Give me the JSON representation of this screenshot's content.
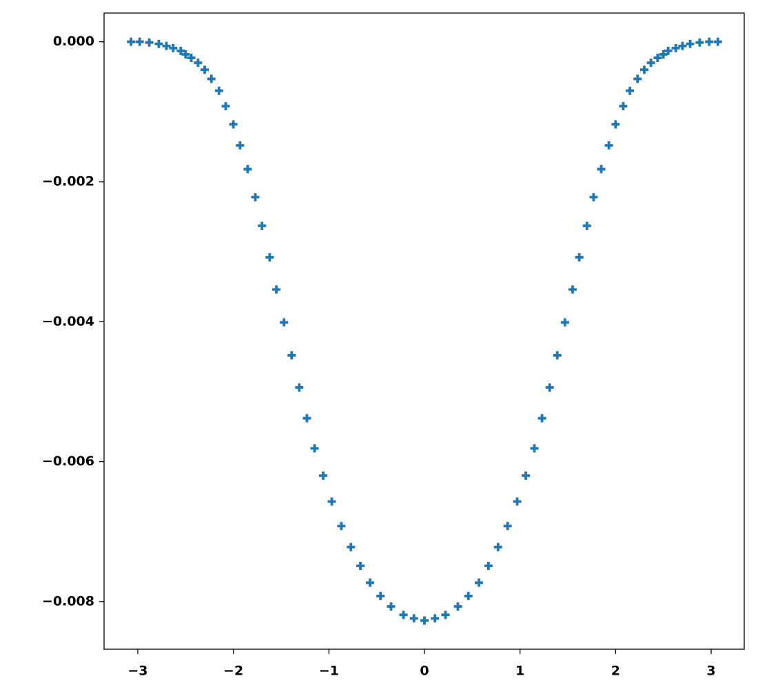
{
  "chart_data": {
    "type": "scatter",
    "marker": "plus",
    "color": "#1f77b4",
    "x": [
      -3.07,
      -2.98,
      -2.88,
      -2.78,
      -2.7,
      -2.63,
      -2.55,
      -2.5,
      -2.44,
      -2.37,
      -2.3,
      -2.23,
      -2.15,
      -2.08,
      -2.0,
      -1.93,
      -1.85,
      -1.77,
      -1.7,
      -1.62,
      -1.55,
      -1.47,
      -1.39,
      -1.31,
      -1.23,
      -1.15,
      -1.06,
      -0.97,
      -0.87,
      -0.77,
      -0.67,
      -0.57,
      -0.46,
      -0.35,
      -0.22,
      -0.11,
      0,
      0.11,
      0.22,
      0.35,
      0.46,
      0.57,
      0.67,
      0.77,
      0.87,
      0.97,
      1.06,
      1.15,
      1.23,
      1.31,
      1.39,
      1.47,
      1.55,
      1.62,
      1.7,
      1.77,
      1.85,
      1.93,
      2.0,
      2.08,
      2.15,
      2.23,
      2.3,
      2.37,
      2.44,
      2.5,
      2.55,
      2.63,
      2.7,
      2.78,
      2.88,
      2.98,
      3.07
    ],
    "values": [
      0,
      0,
      -1e-05,
      -3e-05,
      -6e-05,
      -9e-05,
      -0.00013,
      -0.00018,
      -0.00023,
      -0.0003,
      -0.0004,
      -0.00053,
      -0.0007,
      -0.00092,
      -0.00118,
      -0.00148,
      -0.00182,
      -0.00222,
      -0.00263,
      -0.00308,
      -0.00354,
      -0.00401,
      -0.00448,
      -0.00494,
      -0.00538,
      -0.00581,
      -0.0062,
      -0.00657,
      -0.00692,
      -0.00722,
      -0.00749,
      -0.00773,
      -0.00792,
      -0.00807,
      -0.00819,
      -0.00824,
      -0.00827,
      -0.00824,
      -0.00819,
      -0.00807,
      -0.00792,
      -0.00773,
      -0.00749,
      -0.00722,
      -0.00692,
      -0.00657,
      -0.0062,
      -0.00581,
      -0.00538,
      -0.00494,
      -0.00448,
      -0.00401,
      -0.00354,
      -0.00308,
      -0.00263,
      -0.00222,
      -0.00182,
      -0.00148,
      -0.00118,
      -0.00092,
      -0.0007,
      -0.00053,
      -0.0004,
      -0.0003,
      -0.00023,
      -0.00018,
      -0.00013,
      -9e-05,
      -6e-05,
      -3e-05,
      -1e-05,
      0,
      0
    ],
    "xlim": [
      -3.353,
      3.346
    ],
    "xticks": [
      {
        "value": -3,
        "label": "−3"
      },
      {
        "value": -2,
        "label": "−2"
      },
      {
        "value": -1,
        "label": "−1"
      },
      0,
      1,
      2,
      3
    ],
    "ylim": [
      -0.00868,
      0.00041
    ],
    "yticks": [
      {
        "value": 0,
        "label": "0.000"
      },
      {
        "value": -0.002,
        "label": "−0.002"
      },
      {
        "value": -0.004,
        "label": "−0.004"
      },
      {
        "value": -0.006,
        "label": "−0.006"
      },
      {
        "value": -0.008,
        "label": "−0.008"
      }
    ],
    "grid": false
  }
}
